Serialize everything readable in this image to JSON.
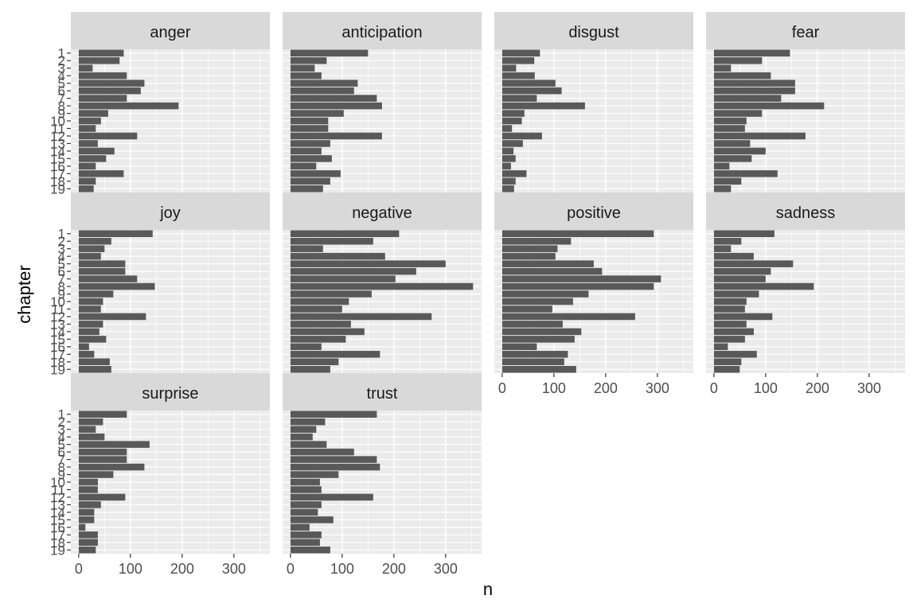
{
  "chart_data": {
    "type": "bar",
    "orientation": "horizontal",
    "facet_wrap": true,
    "xlabel": "n",
    "ylabel": "chapter",
    "x_ticks": [
      0,
      100,
      200,
      300
    ],
    "xlim": [
      0,
      365
    ],
    "categories": [
      "1",
      "2",
      "3",
      "4",
      "5",
      "6",
      "7",
      "8",
      "9",
      "10",
      "11",
      "12",
      "13",
      "14",
      "15",
      "16",
      "17",
      "18",
      "19"
    ],
    "series": [
      {
        "name": "anger",
        "values": [
          87,
          79,
          27,
          93,
          127,
          120,
          93,
          193,
          57,
          43,
          33,
          113,
          37,
          69,
          53,
          33,
          87,
          33,
          29
        ]
      },
      {
        "name": "anticipation",
        "values": [
          150,
          70,
          47,
          60,
          130,
          123,
          167,
          177,
          103,
          73,
          73,
          177,
          77,
          60,
          80,
          50,
          97,
          77,
          63
        ]
      },
      {
        "name": "disgust",
        "values": [
          73,
          62,
          27,
          63,
          103,
          115,
          67,
          160,
          43,
          38,
          19,
          77,
          40,
          22,
          26,
          17,
          47,
          26,
          23
        ]
      },
      {
        "name": "fear",
        "values": [
          147,
          93,
          33,
          110,
          157,
          157,
          130,
          213,
          93,
          63,
          60,
          177,
          70,
          100,
          73,
          30,
          123,
          53,
          33
        ]
      },
      {
        "name": "joy",
        "values": [
          143,
          63,
          50,
          43,
          90,
          90,
          113,
          147,
          67,
          47,
          43,
          130,
          47,
          40,
          53,
          20,
          30,
          60,
          63
        ]
      },
      {
        "name": "negative",
        "values": [
          210,
          160,
          63,
          183,
          300,
          243,
          203,
          353,
          157,
          113,
          100,
          273,
          117,
          143,
          107,
          60,
          173,
          93,
          77
        ]
      },
      {
        "name": "positive",
        "values": [
          293,
          133,
          107,
          103,
          177,
          193,
          307,
          293,
          167,
          137,
          97,
          257,
          117,
          153,
          140,
          67,
          127,
          120,
          143
        ]
      },
      {
        "name": "sadness",
        "values": [
          117,
          53,
          33,
          77,
          153,
          110,
          100,
          193,
          87,
          63,
          60,
          113,
          63,
          77,
          60,
          27,
          83,
          53,
          50
        ]
      },
      {
        "name": "surprise",
        "values": [
          93,
          47,
          33,
          50,
          137,
          93,
          93,
          127,
          67,
          37,
          37,
          90,
          43,
          30,
          30,
          13,
          37,
          37,
          33
        ]
      },
      {
        "name": "trust",
        "values": [
          167,
          67,
          50,
          43,
          70,
          123,
          167,
          173,
          93,
          57,
          60,
          160,
          60,
          53,
          83,
          37,
          60,
          57,
          77
        ]
      }
    ]
  }
}
